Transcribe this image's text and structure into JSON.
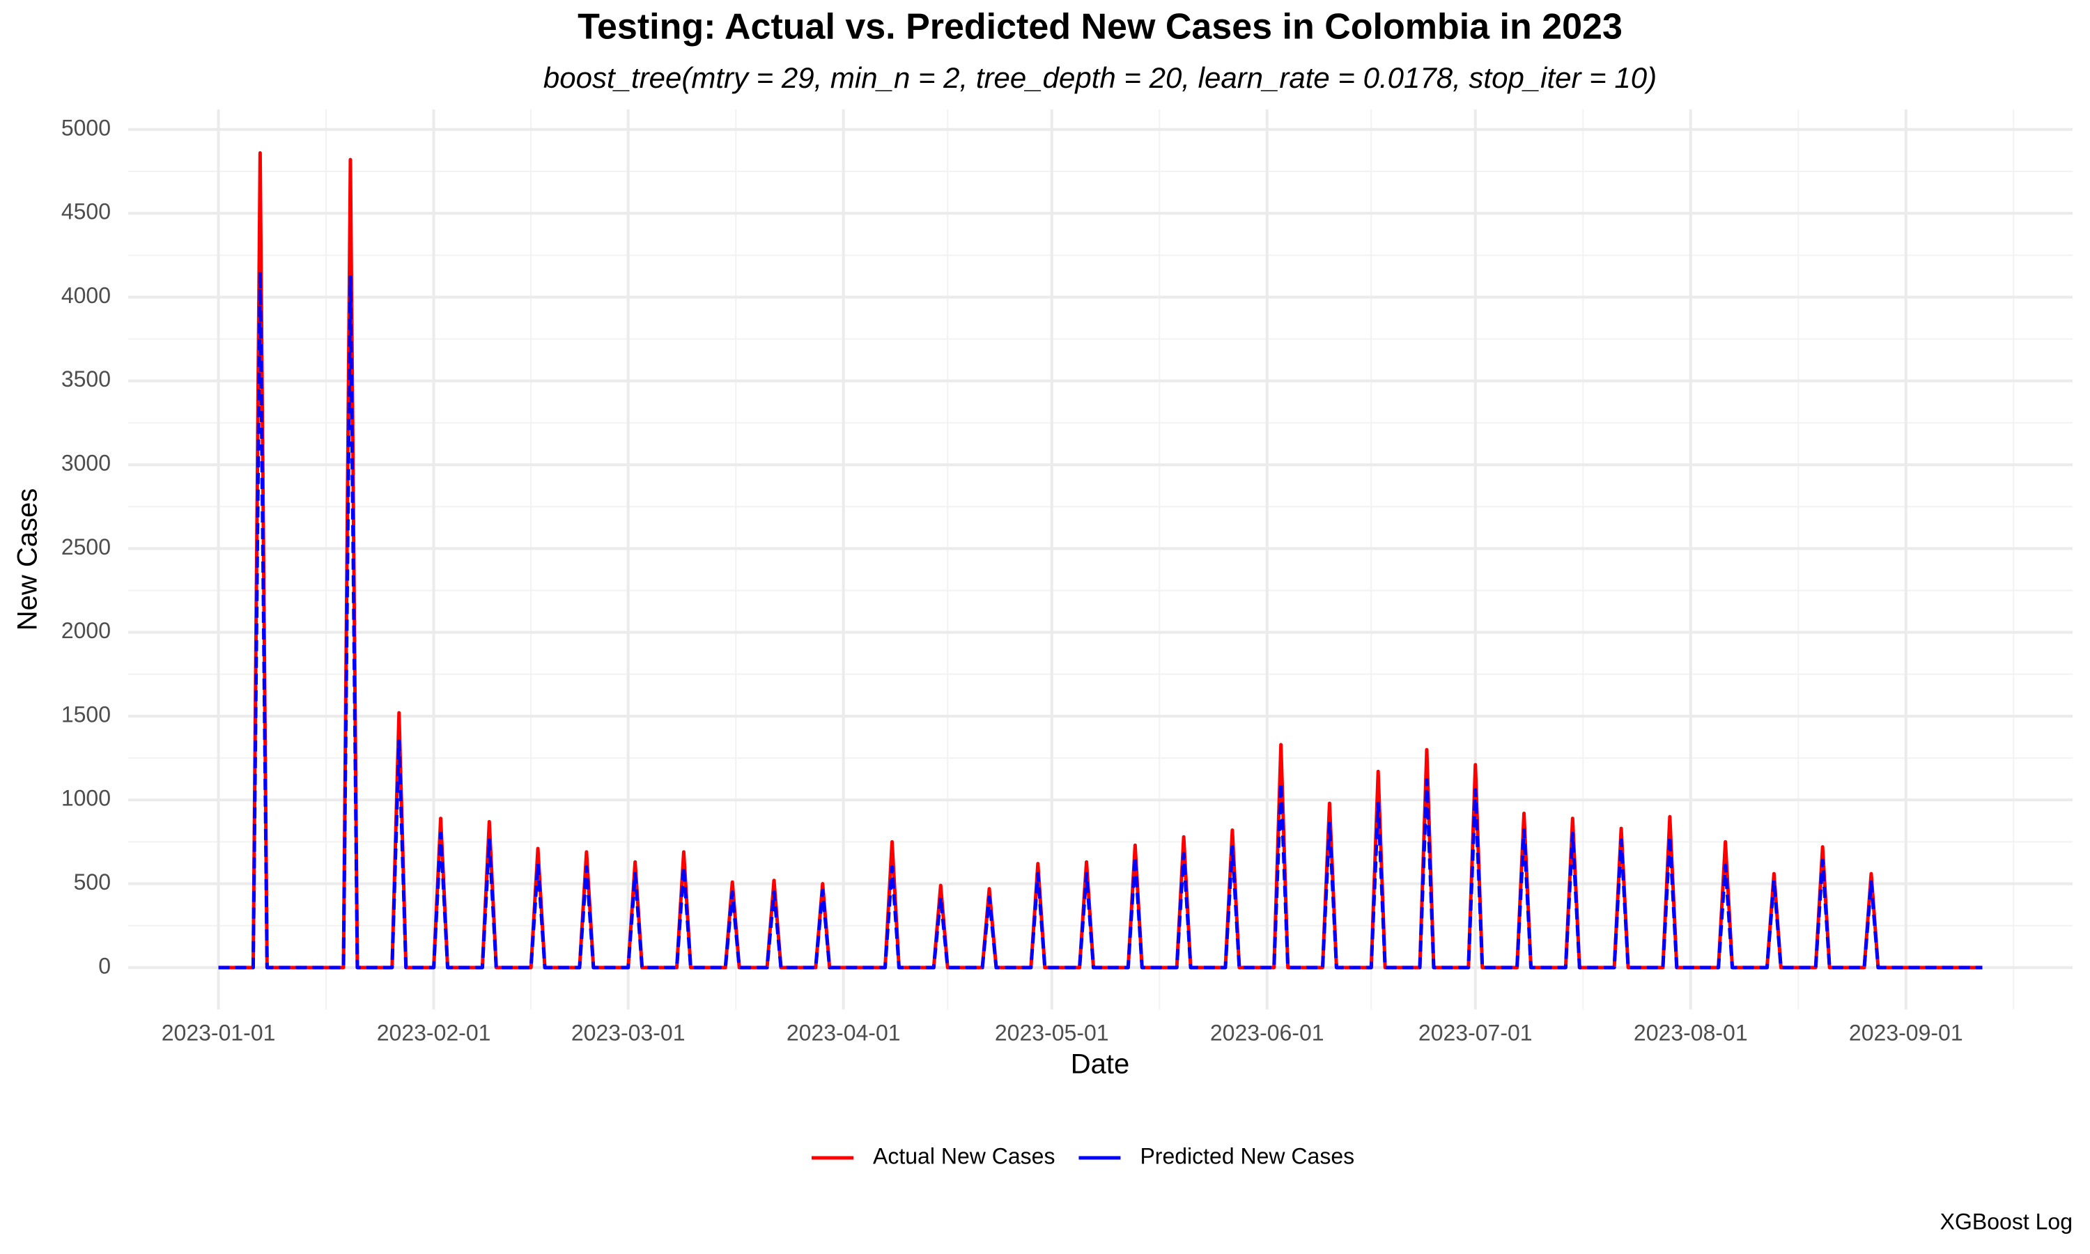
{
  "chart_data": {
    "type": "line",
    "title": "Testing: Actual vs. Predicted New Cases in Colombia in 2023",
    "subtitle": "boost_tree(mtry = 29, min_n = 2, tree_depth = 20, learn_rate = 0.0178, stop_iter = 10)",
    "x_label": "Date",
    "y_label": "New Cases",
    "caption": "XGBoost Log",
    "x": [
      "2023-01-01",
      "2023-01-06",
      "2023-01-07",
      "2023-01-08",
      "2023-01-19",
      "2023-01-20",
      "2023-01-21",
      "2023-01-26",
      "2023-01-27",
      "2023-01-28",
      "2023-02-01",
      "2023-02-02",
      "2023-02-03",
      "2023-02-08",
      "2023-02-09",
      "2023-02-10",
      "2023-02-15",
      "2023-02-16",
      "2023-02-17",
      "2023-02-22",
      "2023-02-23",
      "2023-02-24",
      "2023-03-01",
      "2023-03-02",
      "2023-03-03",
      "2023-03-08",
      "2023-03-09",
      "2023-03-10",
      "2023-03-15",
      "2023-03-16",
      "2023-03-17",
      "2023-03-21",
      "2023-03-22",
      "2023-03-23",
      "2023-03-28",
      "2023-03-29",
      "2023-03-30",
      "2023-04-07",
      "2023-04-08",
      "2023-04-09",
      "2023-04-14",
      "2023-04-15",
      "2023-04-16",
      "2023-04-21",
      "2023-04-22",
      "2023-04-23",
      "2023-04-28",
      "2023-04-29",
      "2023-04-30",
      "2023-05-05",
      "2023-05-06",
      "2023-05-07",
      "2023-05-12",
      "2023-05-13",
      "2023-05-14",
      "2023-05-19",
      "2023-05-20",
      "2023-05-21",
      "2023-05-26",
      "2023-05-27",
      "2023-05-28",
      "2023-06-02",
      "2023-06-03",
      "2023-06-04",
      "2023-06-09",
      "2023-06-10",
      "2023-06-11",
      "2023-06-16",
      "2023-06-17",
      "2023-06-18",
      "2023-06-23",
      "2023-06-24",
      "2023-06-25",
      "2023-06-30",
      "2023-07-01",
      "2023-07-02",
      "2023-07-07",
      "2023-07-08",
      "2023-07-09",
      "2023-07-14",
      "2023-07-15",
      "2023-07-16",
      "2023-07-21",
      "2023-07-22",
      "2023-07-23",
      "2023-07-28",
      "2023-07-29",
      "2023-07-30",
      "2023-08-05",
      "2023-08-06",
      "2023-08-07",
      "2023-08-12",
      "2023-08-13",
      "2023-08-14",
      "2023-08-19",
      "2023-08-20",
      "2023-08-21",
      "2023-08-26",
      "2023-08-27",
      "2023-08-28",
      "2023-09-12"
    ],
    "series": [
      {
        "name": "Actual New Cases",
        "color": "#ff0000",
        "dashed": false,
        "values": [
          0,
          0,
          4860,
          0,
          0,
          4820,
          0,
          0,
          1520,
          0,
          0,
          890,
          0,
          0,
          870,
          0,
          0,
          710,
          0,
          0,
          690,
          0,
          0,
          630,
          0,
          0,
          690,
          0,
          0,
          510,
          0,
          0,
          520,
          0,
          0,
          500,
          0,
          0,
          750,
          0,
          0,
          490,
          0,
          0,
          470,
          0,
          0,
          620,
          0,
          0,
          630,
          0,
          0,
          730,
          0,
          0,
          780,
          0,
          0,
          820,
          0,
          0,
          1330,
          0,
          0,
          980,
          0,
          0,
          1170,
          0,
          0,
          1300,
          0,
          0,
          1210,
          0,
          0,
          920,
          0,
          0,
          890,
          0,
          0,
          830,
          0,
          0,
          900,
          0,
          0,
          750,
          0,
          0,
          560,
          0,
          0,
          720,
          0,
          0,
          560,
          0,
          0
        ]
      },
      {
        "name": "Predicted New Cases",
        "color": "#0000ff",
        "dashed": true,
        "values": [
          0,
          0,
          4150,
          0,
          0,
          4120,
          0,
          0,
          1350,
          0,
          0,
          800,
          0,
          0,
          760,
          0,
          0,
          620,
          0,
          0,
          600,
          0,
          0,
          560,
          0,
          0,
          600,
          0,
          0,
          450,
          0,
          0,
          450,
          0,
          0,
          460,
          0,
          0,
          600,
          0,
          0,
          420,
          0,
          0,
          420,
          0,
          0,
          560,
          0,
          0,
          560,
          0,
          0,
          660,
          0,
          0,
          680,
          0,
          0,
          720,
          0,
          0,
          1100,
          0,
          0,
          860,
          0,
          0,
          980,
          0,
          0,
          1120,
          0,
          0,
          1060,
          0,
          0,
          820,
          0,
          0,
          800,
          0,
          0,
          760,
          0,
          0,
          780,
          0,
          0,
          610,
          0,
          0,
          520,
          0,
          0,
          640,
          0,
          0,
          510,
          0,
          0
        ]
      }
    ],
    "xlim": [
      "2022-12-19",
      "2023-09-25"
    ],
    "xticks": [
      "2023-01-01",
      "2023-02-01",
      "2023-03-01",
      "2023-04-01",
      "2023-05-01",
      "2023-06-01",
      "2023-07-01",
      "2023-08-01",
      "2023-09-01"
    ],
    "ylim": [
      -250,
      5120
    ],
    "yticks": [
      0,
      500,
      1000,
      1500,
      2000,
      2500,
      3000,
      3500,
      4000,
      4500,
      5000
    ],
    "grid": true,
    "legend": "bottom"
  }
}
